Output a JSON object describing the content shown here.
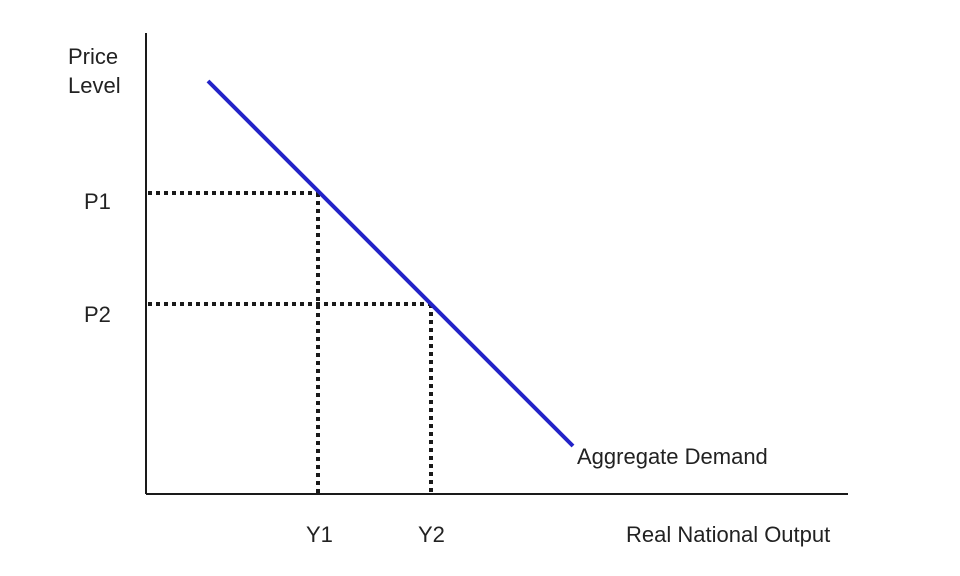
{
  "labels": {
    "y_axis_line1": "Price",
    "y_axis_line2": "Level",
    "x_axis": "Real National Output",
    "p1": "P1",
    "p2": "P2",
    "y1": "Y1",
    "y2": "Y2",
    "curve": "Aggregate Demand"
  },
  "colors": {
    "curve": "#2323c8",
    "axes": "#1a1a1a",
    "text": "#222222"
  }
}
